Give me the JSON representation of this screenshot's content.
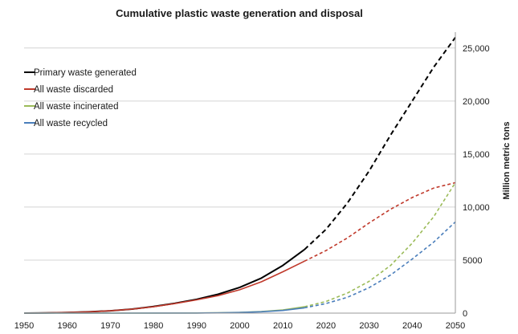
{
  "chart_data": {
    "type": "line",
    "title": "Cumulative plastic waste generation and disposal",
    "xlabel": "",
    "ylabel": "Million metric tons",
    "xlim": [
      1950,
      2050
    ],
    "ylim": [
      0,
      26500
    ],
    "x_ticks": [
      "1950",
      "1960",
      "1970",
      "1980",
      "1990",
      "2000",
      "2010",
      "2020",
      "2030",
      "2040",
      "2050"
    ],
    "y_ticks": [
      {
        "value": 0,
        "label": "0"
      },
      {
        "value": 5000,
        "label": "5000"
      },
      {
        "value": 10000,
        "label": "10,000"
      },
      {
        "value": 15000,
        "label": "15,000"
      },
      {
        "value": 20000,
        "label": "20,000"
      },
      {
        "value": 25000,
        "label": "25,000"
      }
    ],
    "y_axis_position": "right",
    "grid": "horizontal",
    "legend_position": "top-left",
    "projection_start_year": 2015,
    "series": [
      {
        "name": "Primary waste generated",
        "color": "#000000",
        "x": [
          1950,
          1955,
          1960,
          1965,
          1970,
          1975,
          1980,
          1985,
          1990,
          1995,
          2000,
          2005,
          2010,
          2015,
          2020,
          2025,
          2030,
          2035,
          2040,
          2045,
          2050
        ],
        "values": [
          2,
          20,
          60,
          120,
          220,
          380,
          620,
          930,
          1300,
          1780,
          2430,
          3300,
          4500,
          6000,
          7900,
          10400,
          13400,
          16800,
          20000,
          23200,
          26000
        ]
      },
      {
        "name": "All waste discarded",
        "color": "#c0392b",
        "x": [
          1950,
          1955,
          1960,
          1965,
          1970,
          1975,
          1980,
          1985,
          1990,
          1995,
          2000,
          2005,
          2010,
          2015,
          2020,
          2025,
          2030,
          2035,
          2040,
          2045,
          2050
        ],
        "values": [
          2,
          20,
          60,
          120,
          220,
          370,
          600,
          900,
          1250,
          1650,
          2200,
          2950,
          3900,
          4900,
          5900,
          7100,
          8500,
          9800,
          10900,
          11800,
          12300
        ]
      },
      {
        "name": "All waste incinerated",
        "color": "#9bbb59",
        "x": [
          1950,
          1960,
          1970,
          1980,
          1990,
          1995,
          2000,
          2005,
          2010,
          2015,
          2020,
          2025,
          2030,
          2035,
          2040,
          2045,
          2050
        ],
        "values": [
          0,
          0,
          0,
          5,
          15,
          35,
          70,
          150,
          300,
          600,
          1100,
          1900,
          3000,
          4500,
          6600,
          9100,
          12300
        ]
      },
      {
        "name": "All waste recycled",
        "color": "#4a7ebb",
        "x": [
          1950,
          1960,
          1970,
          1980,
          1990,
          1995,
          2000,
          2005,
          2010,
          2015,
          2020,
          2025,
          2030,
          2035,
          2040,
          2045,
          2050
        ],
        "values": [
          0,
          0,
          0,
          5,
          10,
          25,
          60,
          130,
          250,
          500,
          900,
          1500,
          2400,
          3600,
          5100,
          6700,
          8600
        ]
      }
    ]
  }
}
